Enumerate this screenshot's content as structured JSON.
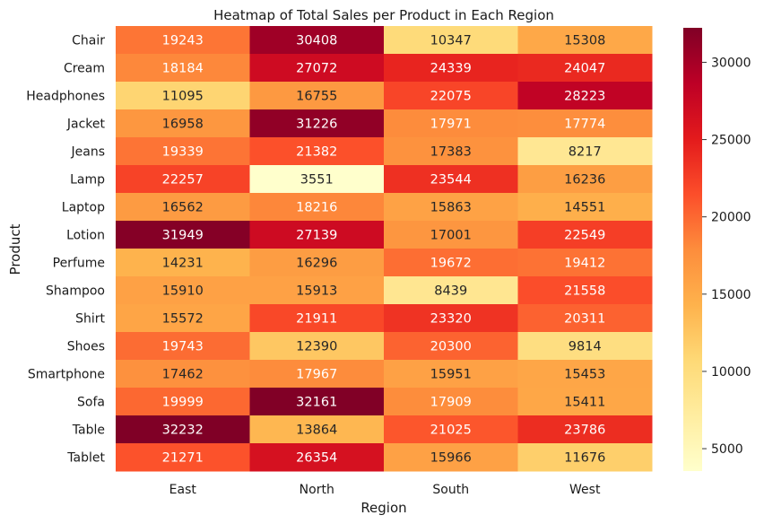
{
  "chart_data": {
    "type": "heatmap",
    "title": "Heatmap of Total Sales per Product in Each Region",
    "xlabel": "Region",
    "ylabel": "Product",
    "x_categories": [
      "East",
      "North",
      "South",
      "West"
    ],
    "y_categories": [
      "Chair",
      "Cream",
      "Headphones",
      "Jacket",
      "Jeans",
      "Lamp",
      "Laptop",
      "Lotion",
      "Perfume",
      "Shampoo",
      "Shirt",
      "Shoes",
      "Smartphone",
      "Sofa",
      "Table",
      "Tablet"
    ],
    "values": [
      [
        19243,
        30408,
        10347,
        15308
      ],
      [
        18184,
        27072,
        24339,
        24047
      ],
      [
        11095,
        16755,
        22075,
        28223
      ],
      [
        16958,
        31226,
        17971,
        17774
      ],
      [
        19339,
        21382,
        17383,
        8217
      ],
      [
        22257,
        3551,
        23544,
        16236
      ],
      [
        16562,
        18216,
        15863,
        14551
      ],
      [
        31949,
        27139,
        17001,
        22549
      ],
      [
        14231,
        16296,
        19672,
        19412
      ],
      [
        15910,
        15913,
        8439,
        21558
      ],
      [
        15572,
        21911,
        23320,
        20311
      ],
      [
        19743,
        12390,
        20300,
        9814
      ],
      [
        17462,
        17967,
        15951,
        15453
      ],
      [
        19999,
        32161,
        17909,
        15411
      ],
      [
        32232,
        13864,
        21025,
        23786
      ],
      [
        21271,
        26354,
        15966,
        11676
      ]
    ],
    "colormap": "YlOrRd",
    "colorbar": {
      "ticks": [
        5000,
        10000,
        15000,
        20000,
        25000,
        30000
      ],
      "ticklabels": [
        "5000",
        "10000",
        "15000",
        "20000",
        "25000",
        "30000"
      ],
      "vmin": 3551,
      "vmax": 32232
    },
    "grid": false,
    "annotations": "cell values printed in each cell"
  }
}
